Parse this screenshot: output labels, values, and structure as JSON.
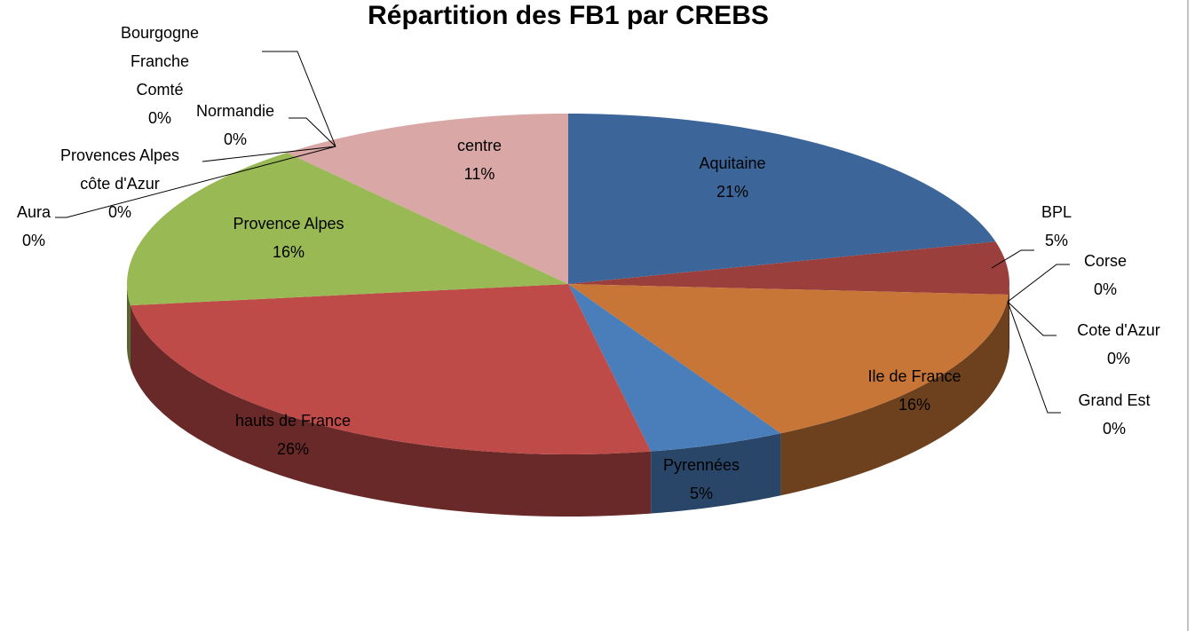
{
  "chart_data": {
    "type": "pie",
    "title": "Répartition des FB1 par CREBS",
    "categories": [
      "Aquitaine",
      "BPL",
      "Corse",
      "Cote d'Azur",
      "Grand Est",
      "Ile de France",
      "Pyrennées",
      "hauts de France",
      "Provence Alpes",
      "Aura",
      "Provences Alpes côte d'Azur",
      "Normandie",
      "Bourgogne Franche Comté",
      "centre"
    ],
    "values": [
      21,
      5,
      0,
      0,
      0,
      16,
      5,
      26,
      16,
      0,
      0,
      0,
      0,
      11
    ],
    "value_labels": [
      "21%",
      "5%",
      "0%",
      "0%",
      "0%",
      "16%",
      "5%",
      "26%",
      "16%",
      "0%",
      "0%",
      "0%",
      "0%",
      "11%"
    ],
    "colors": [
      "#3c6699",
      "#9b3f3d",
      "#7aa03f",
      "#6b5591",
      "#3f97b0",
      "#c87637",
      "#4a7ebb",
      "#be4b48",
      "#98b954",
      "#7e64a1",
      "#4aacc6",
      "#f79646",
      "#2c4d75",
      "#d8a7a6"
    ]
  }
}
